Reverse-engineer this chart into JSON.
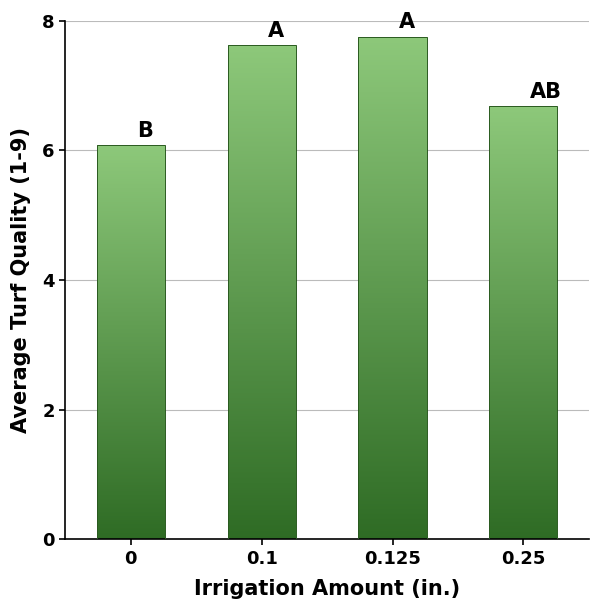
{
  "categories": [
    "0",
    "0.1",
    "0.125",
    "0.25"
  ],
  "values": [
    6.08,
    7.62,
    7.75,
    6.68
  ],
  "letters": [
    "B",
    "A",
    "A",
    "AB"
  ],
  "xlabel": "Irrigation Amount (in.)",
  "ylabel": "Average Turf Quality (1-9)",
  "ylim": [
    0,
    8
  ],
  "yticks": [
    0,
    2,
    4,
    6,
    8
  ],
  "bar_color_top": "#8dc87a",
  "bar_color_bottom": "#2e6b24",
  "bar_width": 0.52,
  "letter_fontsize": 15,
  "axis_label_fontsize": 15,
  "tick_fontsize": 13,
  "background_color": "#ffffff",
  "grid_color": "#bbbbbb",
  "n_grad": 300
}
